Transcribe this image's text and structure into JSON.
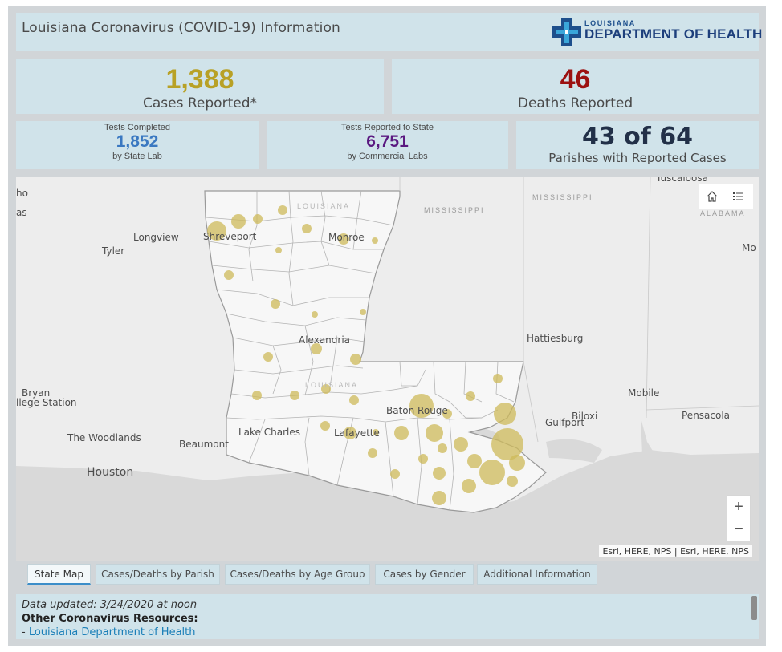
{
  "header": {
    "title": "Louisiana Coronavirus (COVID-19) Information",
    "logo_small": "LOUISIANA",
    "logo_big": "DEPARTMENT OF HEALTH"
  },
  "cases": {
    "value": "1,388",
    "label": "Cases Reported*",
    "color": "#b8a126"
  },
  "deaths": {
    "value": "46",
    "label": "Deaths Reported",
    "color": "#9c1111"
  },
  "tests_state": {
    "top": "Tests Completed",
    "value": "1,852",
    "bottom": "by State Lab",
    "color": "#3a78c1"
  },
  "tests_commercial": {
    "top": "Tests Reported to State",
    "value": "6,751",
    "bottom": "by Commercial Labs",
    "color": "#5a1880"
  },
  "parishes": {
    "value": "43 of 64",
    "label": "Parishes with Reported Cases"
  },
  "map": {
    "state_labels": [
      "MISSISSIPPI",
      "MISSISSIPPI",
      "ALABAMA",
      "LOUISIANA",
      "LOUISIANA"
    ],
    "cities": [
      "Longview",
      "Tyler",
      "Shreveport",
      "Monroe",
      "Alexandria",
      "Hattiesburg",
      "Mobile",
      "Pensacola",
      "Biloxi",
      "Gulfport",
      "Baton Rouge",
      "Lafayette",
      "Lake Charles",
      "Beaumont",
      "The Woodlands",
      "Houston",
      "Bryan",
      "llege Station",
      "Tuscaloosa",
      "Mo",
      "ho",
      "as"
    ],
    "home_icon": "home-icon",
    "legend_icon": "legend-list-icon",
    "zoom_in": "+",
    "zoom_out": "−",
    "attribution": "Esri, HERE, NPS | Esri, HERE, NPS",
    "bubble_color": "#cdb95a"
  },
  "tabs": [
    "State Map",
    "Cases/Deaths by Parish",
    "Cases/Deaths by Age Group",
    "Cases by Gender",
    "Additional Information"
  ],
  "info": {
    "updated": "Data updated: 3/24/2020 at noon",
    "resources_heading": "Other Coronavirus Resources:",
    "link_prefix": "- ",
    "link_text": "Louisiana Department of Health"
  }
}
